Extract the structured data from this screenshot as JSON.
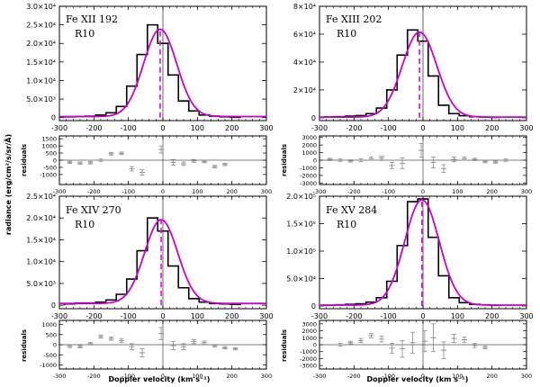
{
  "chart_data": {
    "type": "line",
    "shared": {
      "ylabel": "radiance (erg/cm²/s/sr/Å)",
      "residuals_label": "residuals",
      "xlabel": "Doppler velocity (km s⁻¹)",
      "xlim": [
        -300,
        300
      ],
      "xticks": [
        "-300",
        "-200",
        "-100",
        "0",
        "100",
        "200",
        "300"
      ],
      "colors": {
        "histogram": "#000000",
        "fit": "#cc00cc",
        "center": "#ee00ee",
        "residual": "#888888"
      }
    },
    "panels": [
      {
        "id": "fe12",
        "title": "Fe XII 192",
        "subtitle": "R10",
        "ylim": [
          -800,
          30000
        ],
        "yticks": [
          {
            "value": 0,
            "label": "0"
          },
          {
            "value": 5000,
            "label": "5.0×10³"
          },
          {
            "value": 10000,
            "label": "1.0×10⁴"
          },
          {
            "value": 15000,
            "label": "1.5×10⁴"
          },
          {
            "value": 20000,
            "label": "2.0×10⁴"
          },
          {
            "value": 25000,
            "label": "2.5×10⁴"
          },
          {
            "value": 30000,
            "label": "3.0×10⁴"
          }
        ],
        "hist_x": [
          -270,
          -240,
          -210,
          -180,
          -150,
          -120,
          -90,
          -60,
          -30,
          0,
          30,
          60,
          90,
          120,
          150,
          180,
          210
        ],
        "hist_y": [
          200,
          300,
          400,
          700,
          1300,
          3000,
          8500,
          17000,
          25000,
          20000,
          11500,
          4500,
          1800,
          700,
          400,
          200,
          100
        ],
        "fit": {
          "amp": 23500,
          "center": -8,
          "sigma": 48,
          "base": 300
        },
        "residual_ylim": [
          -1700,
          1700
        ],
        "residual_yticks": [
          {
            "value": 1500,
            "label": "1500"
          },
          {
            "value": 1000,
            "label": "1000"
          },
          {
            "value": 500,
            "label": "500"
          },
          {
            "value": 0,
            "label": "0"
          },
          {
            "value": -500,
            "label": "-500"
          },
          {
            "value": -1000,
            "label": "-1000"
          }
        ],
        "residuals": [
          {
            "x": -270,
            "y": -150,
            "err": 80
          },
          {
            "x": -240,
            "y": -200,
            "err": 80
          },
          {
            "x": -210,
            "y": -180,
            "err": 80
          },
          {
            "x": -180,
            "y": 0,
            "err": 80
          },
          {
            "x": -150,
            "y": 450,
            "err": 90
          },
          {
            "x": -120,
            "y": 480,
            "err": 90
          },
          {
            "x": -90,
            "y": -600,
            "err": 150
          },
          {
            "x": -60,
            "y": -850,
            "err": 200
          },
          {
            "x": -5,
            "y": 750,
            "err": 250
          },
          {
            "x": 30,
            "y": -150,
            "err": 200
          },
          {
            "x": 60,
            "y": -250,
            "err": 120
          },
          {
            "x": 90,
            "y": -50,
            "err": 100
          },
          {
            "x": 120,
            "y": -100,
            "err": 80
          },
          {
            "x": 150,
            "y": -450,
            "err": 80
          },
          {
            "x": 180,
            "y": -300,
            "err": 80
          }
        ]
      },
      {
        "id": "fe13",
        "title": "Fe XIII 202",
        "subtitle": "R10",
        "ylim": [
          -2000,
          80000
        ],
        "yticks": [
          {
            "value": 0,
            "label": "0"
          },
          {
            "value": 20000,
            "label": "2×10⁴"
          },
          {
            "value": 40000,
            "label": "4×10⁴"
          },
          {
            "value": 60000,
            "label": "6×10⁴"
          },
          {
            "value": 80000,
            "label": "8×10⁴"
          }
        ],
        "hist_x": [
          -270,
          -240,
          -210,
          -180,
          -150,
          -120,
          -90,
          -60,
          -30,
          0,
          30,
          60,
          90,
          120,
          150,
          180,
          210
        ],
        "hist_y": [
          600,
          800,
          1200,
          1600,
          3000,
          7000,
          20000,
          45000,
          63000,
          55000,
          30000,
          9000,
          3000,
          1500,
          800,
          500,
          300
        ],
        "fit": {
          "amp": 61000,
          "center": -10,
          "sigma": 50,
          "base": 500
        },
        "residual_ylim": [
          -3200,
          3200
        ],
        "residual_yticks": [
          {
            "value": 3000,
            "label": "3000"
          },
          {
            "value": 2000,
            "label": "2000"
          },
          {
            "value": 1000,
            "label": "1000"
          },
          {
            "value": 0,
            "label": "0"
          },
          {
            "value": -1000,
            "label": "-1000"
          },
          {
            "value": -2000,
            "label": "-2000"
          },
          {
            "value": -3000,
            "label": "-3000"
          }
        ],
        "residuals": [
          {
            "x": -270,
            "y": 100,
            "err": 150
          },
          {
            "x": -240,
            "y": 0,
            "err": 150
          },
          {
            "x": -210,
            "y": -100,
            "err": 150
          },
          {
            "x": -180,
            "y": 0,
            "err": 200
          },
          {
            "x": -150,
            "y": 200,
            "err": 200
          },
          {
            "x": -120,
            "y": 300,
            "err": 250
          },
          {
            "x": -90,
            "y": -700,
            "err": 400
          },
          {
            "x": -60,
            "y": -400,
            "err": 700
          },
          {
            "x": -5,
            "y": 1300,
            "err": 900
          },
          {
            "x": 30,
            "y": -300,
            "err": 700
          },
          {
            "x": 60,
            "y": -1100,
            "err": 500
          },
          {
            "x": 90,
            "y": 100,
            "err": 300
          },
          {
            "x": 120,
            "y": 200,
            "err": 200
          },
          {
            "x": 150,
            "y": 100,
            "err": 150
          },
          {
            "x": 180,
            "y": -200,
            "err": 150
          },
          {
            "x": 210,
            "y": -250,
            "err": 150
          },
          {
            "x": 240,
            "y": 0,
            "err": 150
          }
        ]
      },
      {
        "id": "fe14",
        "title": "Fe XIV 270",
        "subtitle": "R10",
        "ylim": [
          -800,
          25000
        ],
        "yticks": [
          {
            "value": 0,
            "label": "0"
          },
          {
            "value": 5000,
            "label": "5.0×10³"
          },
          {
            "value": 10000,
            "label": "1.0×10⁴"
          },
          {
            "value": 15000,
            "label": "1.5×10⁴"
          },
          {
            "value": 20000,
            "label": "2.0×10⁴"
          },
          {
            "value": 25000,
            "label": "2.5×10⁴"
          }
        ],
        "hist_x": [
          -270,
          -240,
          -210,
          -180,
          -150,
          -120,
          -90,
          -60,
          -30,
          0,
          30,
          60,
          90,
          120,
          150,
          180,
          210
        ],
        "hist_y": [
          300,
          500,
          500,
          700,
          1200,
          2500,
          6000,
          12500,
          20000,
          17000,
          9000,
          4000,
          1500,
          700,
          400,
          300,
          200
        ],
        "fit": {
          "amp": 19200,
          "center": -5,
          "sigma": 48,
          "base": 400
        },
        "residual_ylim": [
          -1200,
          1200
        ],
        "residual_yticks": [
          {
            "value": 1000,
            "label": "1000"
          },
          {
            "value": 500,
            "label": "500"
          },
          {
            "value": 0,
            "label": "0"
          },
          {
            "value": -500,
            "label": "-500"
          },
          {
            "value": -1000,
            "label": "-1000"
          }
        ],
        "residuals": [
          {
            "x": -270,
            "y": -80,
            "err": 60
          },
          {
            "x": -240,
            "y": -100,
            "err": 60
          },
          {
            "x": -210,
            "y": 50,
            "err": 60
          },
          {
            "x": -180,
            "y": 400,
            "err": 80
          },
          {
            "x": -150,
            "y": 300,
            "err": 80
          },
          {
            "x": -120,
            "y": 200,
            "err": 100
          },
          {
            "x": -90,
            "y": -100,
            "err": 150
          },
          {
            "x": -60,
            "y": -400,
            "err": 200
          },
          {
            "x": -5,
            "y": 550,
            "err": 300
          },
          {
            "x": 30,
            "y": -50,
            "err": 200
          },
          {
            "x": 60,
            "y": -100,
            "err": 150
          },
          {
            "x": 90,
            "y": 150,
            "err": 100
          },
          {
            "x": 120,
            "y": 100,
            "err": 80
          },
          {
            "x": 150,
            "y": -50,
            "err": 60
          },
          {
            "x": 180,
            "y": -150,
            "err": 60
          },
          {
            "x": 210,
            "y": -200,
            "err": 60
          }
        ]
      },
      {
        "id": "fe15",
        "title": "Fe XV 284",
        "subtitle": "R10",
        "ylim": [
          -5000,
          200000
        ],
        "yticks": [
          {
            "value": 0,
            "label": "0"
          },
          {
            "value": 50000,
            "label": "5.0×10⁴"
          },
          {
            "value": 100000,
            "label": "1.0×10⁵"
          },
          {
            "value": 150000,
            "label": "1.5×10⁵"
          },
          {
            "value": 200000,
            "label": "2.0×10⁵"
          }
        ],
        "hist_x": [
          -270,
          -240,
          -210,
          -180,
          -150,
          -120,
          -90,
          -60,
          -30,
          0,
          30,
          60,
          90,
          120,
          150,
          180,
          210
        ],
        "hist_y": [
          1000,
          2000,
          3000,
          4000,
          7000,
          15000,
          45000,
          110000,
          190000,
          195000,
          125000,
          55000,
          15000,
          6000,
          3000,
          2000,
          1000
        ],
        "fit": {
          "amp": 192000,
          "center": -3,
          "sigma": 50,
          "base": 1500
        },
        "residual_ylim": [
          -3500,
          3500
        ],
        "residual_yticks": [
          {
            "value": 3000,
            "label": "3000"
          },
          {
            "value": 2000,
            "label": "2000"
          },
          {
            "value": 1000,
            "label": "1000"
          },
          {
            "value": 0,
            "label": "0"
          },
          {
            "value": -1000,
            "label": "-1000"
          },
          {
            "value": -2000,
            "label": "-2000"
          },
          {
            "value": -3000,
            "label": "-3000"
          }
        ],
        "residuals": [
          {
            "x": -240,
            "y": 0,
            "err": 200
          },
          {
            "x": -210,
            "y": 300,
            "err": 200
          },
          {
            "x": -180,
            "y": 600,
            "err": 300
          },
          {
            "x": -150,
            "y": 1300,
            "err": 300
          },
          {
            "x": -120,
            "y": 800,
            "err": 400
          },
          {
            "x": -90,
            "y": -500,
            "err": 700
          },
          {
            "x": -60,
            "y": -600,
            "err": 1200
          },
          {
            "x": -30,
            "y": 300,
            "err": 1500
          },
          {
            "x": 5,
            "y": 500,
            "err": 1500
          },
          {
            "x": 30,
            "y": 1000,
            "err": 2000
          },
          {
            "x": 60,
            "y": -800,
            "err": 1200
          },
          {
            "x": 90,
            "y": 900,
            "err": 600
          },
          {
            "x": 120,
            "y": 700,
            "err": 400
          },
          {
            "x": 150,
            "y": -100,
            "err": 300
          },
          {
            "x": 180,
            "y": -400,
            "err": 200
          }
        ]
      }
    ]
  }
}
